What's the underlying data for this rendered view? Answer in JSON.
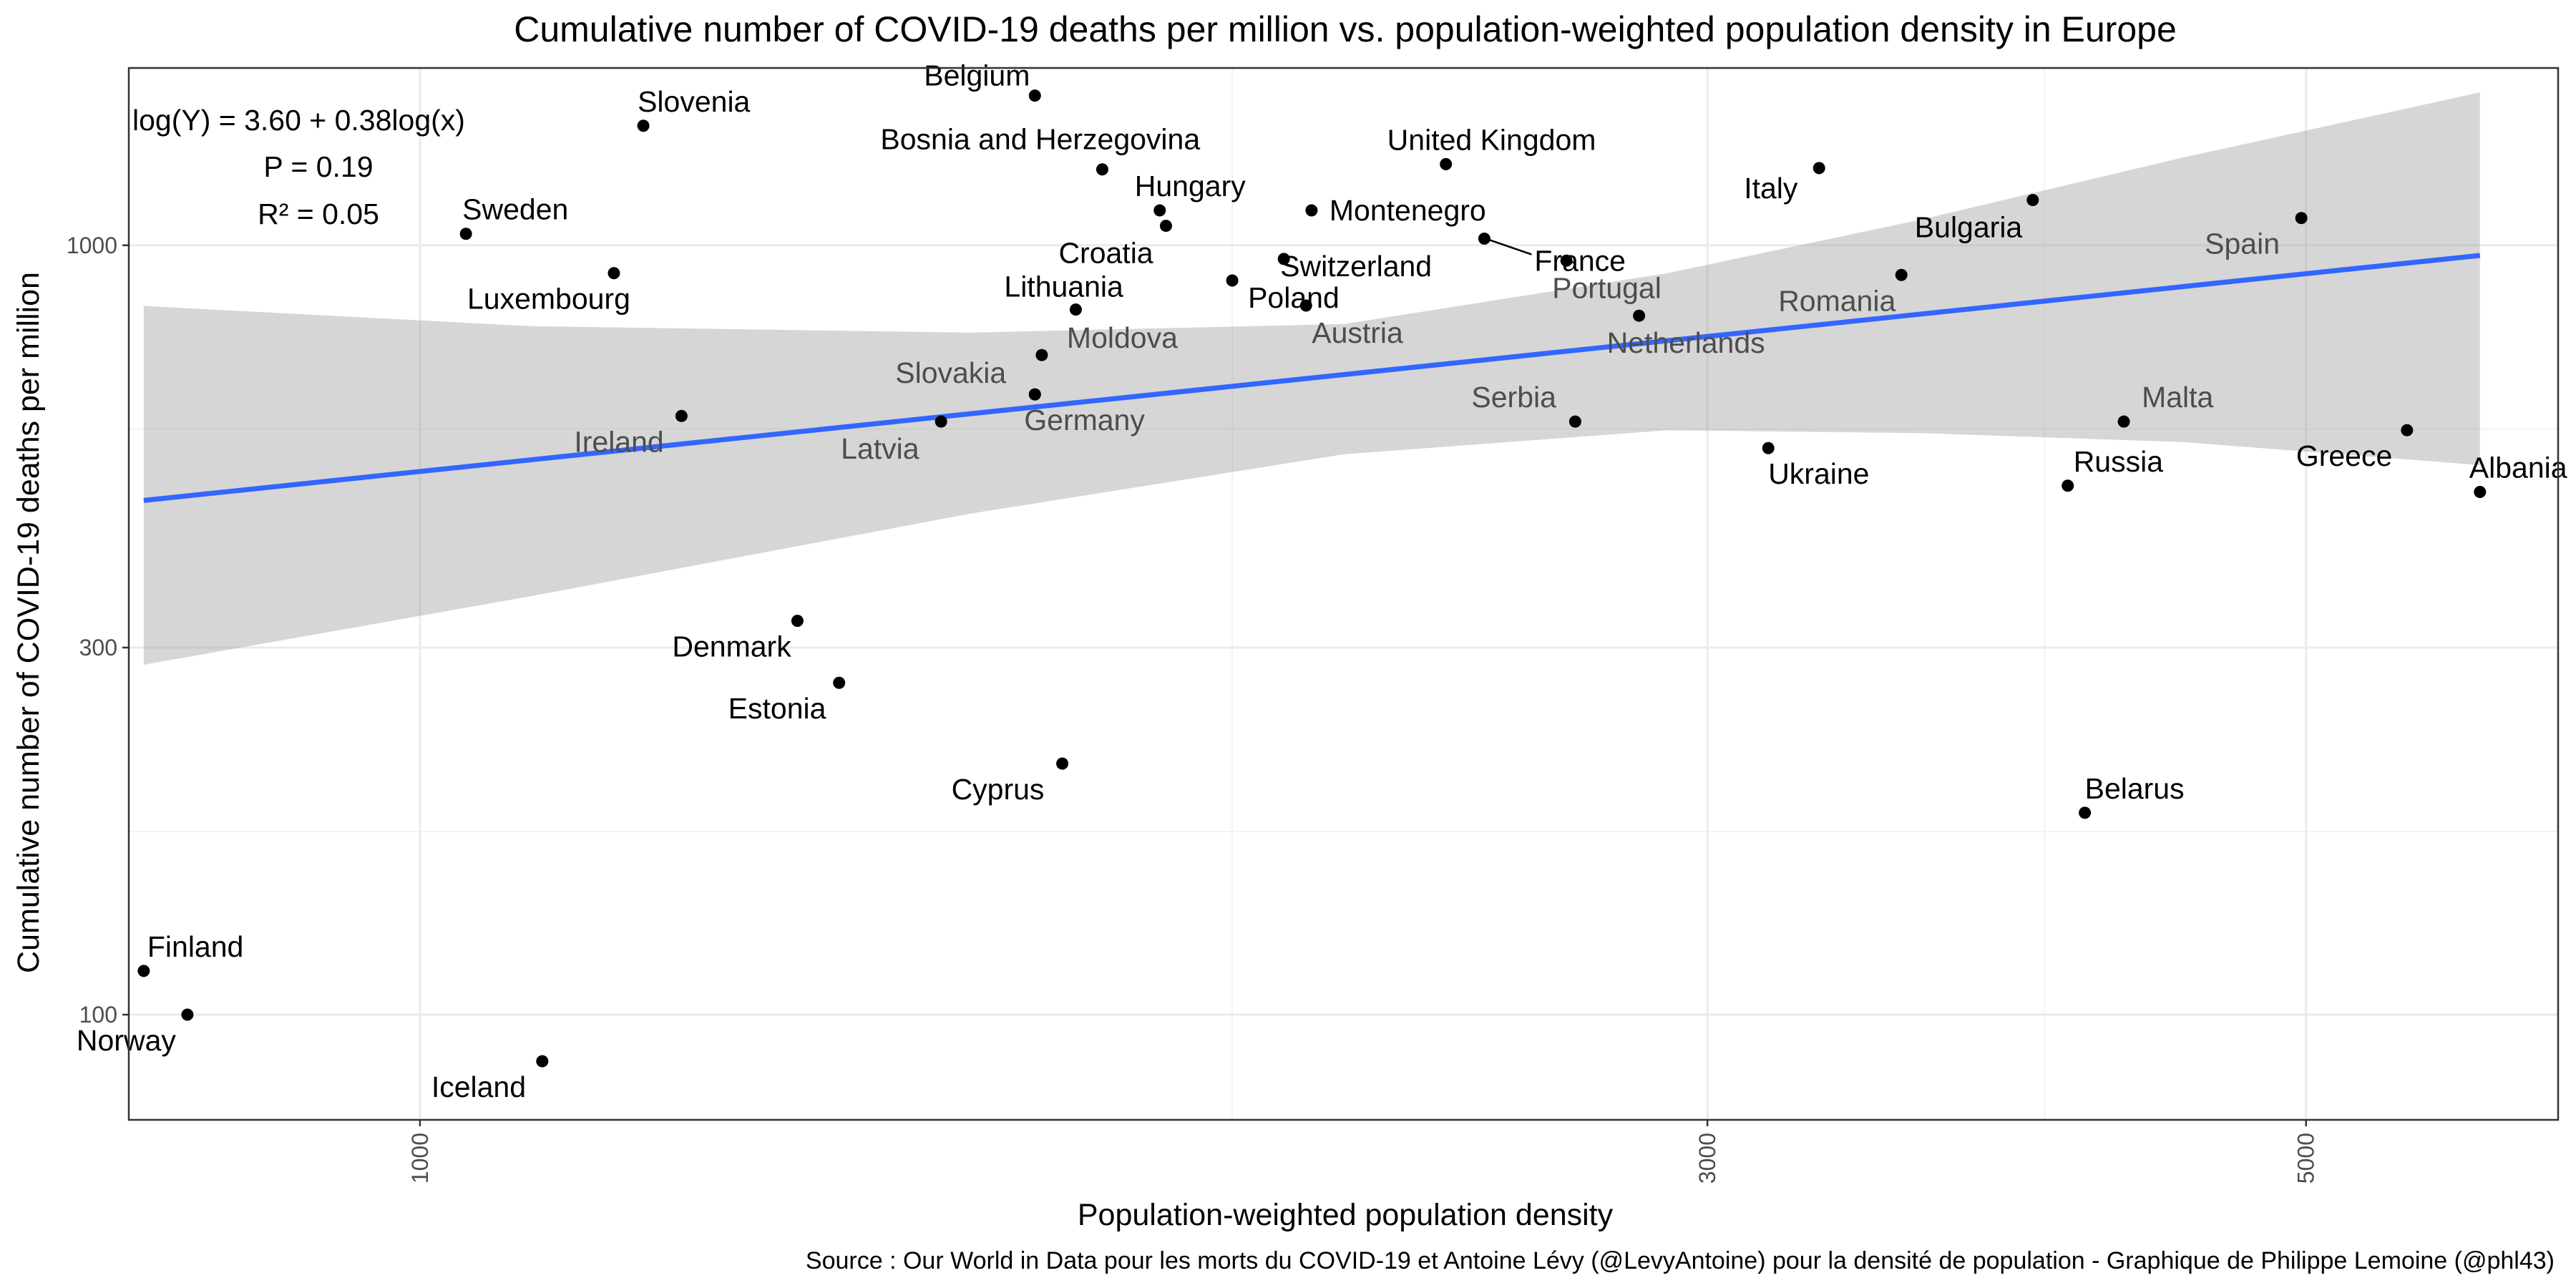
{
  "chart_data": {
    "type": "scatter",
    "title": "Cumulative number of COVID-19 deaths per million vs. population-weighted population density in Europe",
    "xlabel": "Population-weighted population density",
    "ylabel": "Cumulative number of COVID-19 deaths per million",
    "x_scale": "log",
    "y_scale": "log",
    "xlim": [
      780,
      6200
    ],
    "ylim": [
      73,
      1700
    ],
    "x_ticks": [
      {
        "value": 1000,
        "label": "1000"
      },
      {
        "value": 3000,
        "label": "3000"
      },
      {
        "value": 5000,
        "label": "5000"
      }
    ],
    "x_minor_ticks": [
      2000,
      4000
    ],
    "y_ticks": [
      {
        "value": 100,
        "label": "100"
      },
      {
        "value": 300,
        "label": "300"
      },
      {
        "value": 1000,
        "label": "1000"
      }
    ],
    "y_minor_ticks": [
      173,
      577
    ],
    "grid": true,
    "caption": "Source : Our World in Data pour les morts du COVID-19 et Antoine Lévy (@LevyAntoine) pour la densité de population - Graphique de Philippe Lemoine (@phl43)",
    "annotations": [
      "log(Y) = 3.60 + 0.38log(x)",
      "P = 0.19",
      "R² = 0.05"
    ],
    "regression": {
      "color": "#3366ff",
      "line": [
        {
          "x": 790,
          "y": 466
        },
        {
          "x": 5800,
          "y": 970
        }
      ],
      "band": [
        {
          "x": 790,
          "upper": 834,
          "lower": 285
        },
        {
          "x": 1100,
          "upper": 785,
          "lower": 350
        },
        {
          "x": 1600,
          "upper": 770,
          "lower": 448
        },
        {
          "x": 2200,
          "upper": 790,
          "lower": 535
        },
        {
          "x": 2900,
          "upper": 920,
          "lower": 575
        },
        {
          "x": 3600,
          "upper": 1080,
          "lower": 570
        },
        {
          "x": 4500,
          "upper": 1300,
          "lower": 555
        },
        {
          "x": 5800,
          "upper": 1580,
          "lower": 518
        }
      ]
    },
    "points": [
      {
        "label": "Belgium",
        "x": 1690,
        "y": 1565,
        "label_dx": -155,
        "label_dy": -14,
        "anchor": "start",
        "dim": false
      },
      {
        "label": "Slovenia",
        "x": 1210,
        "y": 1430,
        "label_dx": -8,
        "label_dy": -20,
        "anchor": "start",
        "dim": false
      },
      {
        "label": "Bosnia and Herzegovina",
        "x": 1790,
        "y": 1255,
        "label_dx": -310,
        "label_dy": -28,
        "anchor": "start",
        "dim": false
      },
      {
        "label": "United Kingdom",
        "x": 2400,
        "y": 1275,
        "label_dx": -82,
        "label_dy": -20,
        "anchor": "start",
        "dim": false
      },
      {
        "label": "Italy",
        "x": 3300,
        "y": 1260,
        "label_dx": -105,
        "label_dy": 42,
        "anchor": "start",
        "dim": false
      },
      {
        "label": "Hungary",
        "x": 1880,
        "y": 1110,
        "label_dx": -35,
        "label_dy": -20,
        "anchor": "start",
        "dim": false
      },
      {
        "label": "Croatia",
        "x": 1890,
        "y": 1060,
        "label_dx": -150,
        "label_dy": 52,
        "anchor": "start",
        "dim": false
      },
      {
        "label": "Montenegro",
        "x": 2140,
        "y": 1110,
        "label_dx": 25,
        "label_dy": 14,
        "anchor": "start",
        "dim": false
      },
      {
        "label": "France",
        "x": 2480,
        "y": 1020,
        "label_dx": 70,
        "label_dy": 45,
        "anchor": "start",
        "dim": false
      },
      {
        "label": "Switzerland",
        "x": 2090,
        "y": 960,
        "label_dx": -5,
        "label_dy": 24,
        "anchor": "start",
        "dim": false
      },
      {
        "label": "Sweden",
        "x": 1040,
        "y": 1035,
        "label_dx": -5,
        "label_dy": -20,
        "anchor": "start",
        "dim": false
      },
      {
        "label": "Bulgaria",
        "x": 3960,
        "y": 1145,
        "label_dx": -165,
        "label_dy": 52,
        "anchor": "start",
        "dim": false
      },
      {
        "label": "Spain",
        "x": 4980,
        "y": 1085,
        "label_dx": -135,
        "label_dy": 50,
        "anchor": "start",
        "dim": true
      },
      {
        "label": "Luxembourg",
        "x": 1180,
        "y": 920,
        "label_dx": -205,
        "label_dy": 50,
        "anchor": "start",
        "dim": false
      },
      {
        "label": "Lithuania",
        "x": 1750,
        "y": 825,
        "label_dx": -100,
        "label_dy": -18,
        "anchor": "start",
        "dim": false
      },
      {
        "label": "Poland",
        "x": 2000,
        "y": 900,
        "label_dx": 22,
        "label_dy": 38,
        "anchor": "start",
        "dim": false
      },
      {
        "label": "Portugal",
        "x": 2660,
        "y": 955,
        "label_dx": -20,
        "label_dy": 52,
        "anchor": "start",
        "dim": true
      },
      {
        "label": "Romania",
        "x": 3540,
        "y": 915,
        "label_dx": -172,
        "label_dy": 50,
        "anchor": "start",
        "dim": true
      },
      {
        "label": "Austria",
        "x": 2130,
        "y": 835,
        "label_dx": 8,
        "label_dy": 52,
        "anchor": "start",
        "dim": true
      },
      {
        "label": "Netherlands",
        "x": 2830,
        "y": 810,
        "label_dx": -45,
        "label_dy": 52,
        "anchor": "start",
        "dim": true
      },
      {
        "label": "Moldova",
        "x": 1700,
        "y": 720,
        "label_dx": 35,
        "label_dy": -10,
        "anchor": "start",
        "dim": true
      },
      {
        "label": "Slovakia",
        "x": 1690,
        "y": 640,
        "label_dx": -195,
        "label_dy": -16,
        "anchor": "start",
        "dim": true
      },
      {
        "label": "Germany",
        "x": 1690,
        "y": 640,
        "label_dx": -15,
        "label_dy": 50,
        "anchor": "start",
        "dim": true
      },
      {
        "label": "Ireland",
        "x": 1250,
        "y": 600,
        "label_dx": -150,
        "label_dy": 50,
        "anchor": "start",
        "dim": true
      },
      {
        "label": "Latvia",
        "x": 1560,
        "y": 590,
        "label_dx": -140,
        "label_dy": 52,
        "anchor": "start",
        "dim": true
      },
      {
        "label": "Serbia",
        "x": 2680,
        "y": 590,
        "label_dx": -145,
        "label_dy": -20,
        "anchor": "start",
        "dim": true
      },
      {
        "label": "Malta",
        "x": 4280,
        "y": 590,
        "label_dx": 25,
        "label_dy": -20,
        "anchor": "start",
        "dim": true
      },
      {
        "label": "Greece",
        "x": 5450,
        "y": 575,
        "label_dx": -155,
        "label_dy": 50,
        "anchor": "start",
        "dim": false
      },
      {
        "label": "Ukraine",
        "x": 3160,
        "y": 545,
        "label_dx": 0,
        "label_dy": 50,
        "anchor": "start",
        "dim": false
      },
      {
        "label": "Russia",
        "x": 4080,
        "y": 487,
        "label_dx": 8,
        "label_dy": -20,
        "anchor": "start",
        "dim": false
      },
      {
        "label": "Albania",
        "x": 5800,
        "y": 478,
        "label_dx": -15,
        "label_dy": -20,
        "anchor": "start",
        "dim": false
      },
      {
        "label": "Denmark",
        "x": 1380,
        "y": 325,
        "label_dx": -175,
        "label_dy": 50,
        "anchor": "start",
        "dim": false
      },
      {
        "label": "Estonia",
        "x": 1430,
        "y": 270,
        "label_dx": -155,
        "label_dy": 50,
        "anchor": "start",
        "dim": false
      },
      {
        "label": "Cyprus",
        "x": 1730,
        "y": 212,
        "label_dx": -155,
        "label_dy": 50,
        "anchor": "start",
        "dim": false
      },
      {
        "label": "Belarus",
        "x": 4140,
        "y": 183,
        "label_dx": 0,
        "label_dy": -20,
        "anchor": "start",
        "dim": false
      },
      {
        "label": "Finland",
        "x": 790,
        "y": 114,
        "label_dx": 5,
        "label_dy": -20,
        "anchor": "start",
        "dim": false
      },
      {
        "label": "Norway",
        "x": 820,
        "y": 100,
        "label_dx": -155,
        "label_dy": 50,
        "anchor": "start",
        "dim": false
      },
      {
        "label": "Iceland",
        "x": 1110,
        "y": 87,
        "label_dx": -155,
        "label_dy": 50,
        "anchor": "start",
        "dim": false
      }
    ]
  }
}
